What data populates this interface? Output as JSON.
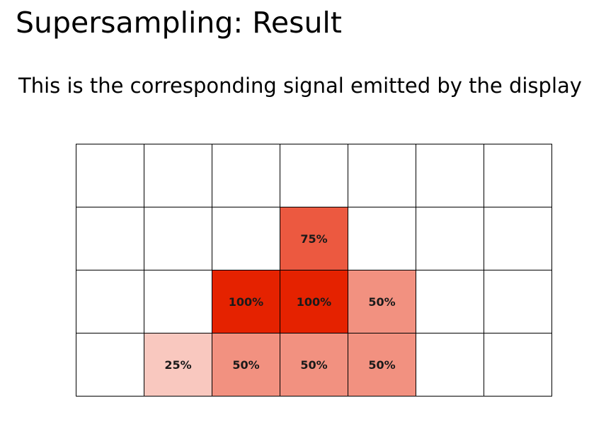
{
  "slide": {
    "title": "Supersampling: Result",
    "subtitle": "This is the corresponding signal emitted by the display"
  },
  "grid": {
    "columns": 7,
    "rows": 4,
    "base_color": "#e52200",
    "cells": [
      {
        "row": 0,
        "col": 0,
        "coverage": 0,
        "label": ""
      },
      {
        "row": 0,
        "col": 1,
        "coverage": 0,
        "label": ""
      },
      {
        "row": 0,
        "col": 2,
        "coverage": 0,
        "label": ""
      },
      {
        "row": 0,
        "col": 3,
        "coverage": 0,
        "label": ""
      },
      {
        "row": 0,
        "col": 4,
        "coverage": 0,
        "label": ""
      },
      {
        "row": 0,
        "col": 5,
        "coverage": 0,
        "label": ""
      },
      {
        "row": 0,
        "col": 6,
        "coverage": 0,
        "label": ""
      },
      {
        "row": 1,
        "col": 0,
        "coverage": 0,
        "label": ""
      },
      {
        "row": 1,
        "col": 1,
        "coverage": 0,
        "label": ""
      },
      {
        "row": 1,
        "col": 2,
        "coverage": 0,
        "label": ""
      },
      {
        "row": 1,
        "col": 3,
        "coverage": 0.75,
        "label": "75%"
      },
      {
        "row": 1,
        "col": 4,
        "coverage": 0,
        "label": ""
      },
      {
        "row": 1,
        "col": 5,
        "coverage": 0,
        "label": ""
      },
      {
        "row": 1,
        "col": 6,
        "coverage": 0,
        "label": ""
      },
      {
        "row": 2,
        "col": 0,
        "coverage": 0,
        "label": ""
      },
      {
        "row": 2,
        "col": 1,
        "coverage": 0,
        "label": ""
      },
      {
        "row": 2,
        "col": 2,
        "coverage": 1.0,
        "label": "100%"
      },
      {
        "row": 2,
        "col": 3,
        "coverage": 1.0,
        "label": "100%"
      },
      {
        "row": 2,
        "col": 4,
        "coverage": 0.5,
        "label": "50%"
      },
      {
        "row": 2,
        "col": 5,
        "coverage": 0,
        "label": ""
      },
      {
        "row": 2,
        "col": 6,
        "coverage": 0,
        "label": ""
      },
      {
        "row": 3,
        "col": 0,
        "coverage": 0,
        "label": ""
      },
      {
        "row": 3,
        "col": 1,
        "coverage": 0.25,
        "label": "25%"
      },
      {
        "row": 3,
        "col": 2,
        "coverage": 0.5,
        "label": "50%"
      },
      {
        "row": 3,
        "col": 3,
        "coverage": 0.5,
        "label": "50%"
      },
      {
        "row": 3,
        "col": 4,
        "coverage": 0.5,
        "label": "50%"
      },
      {
        "row": 3,
        "col": 5,
        "coverage": 0,
        "label": ""
      },
      {
        "row": 3,
        "col": 6,
        "coverage": 0,
        "label": ""
      }
    ]
  }
}
